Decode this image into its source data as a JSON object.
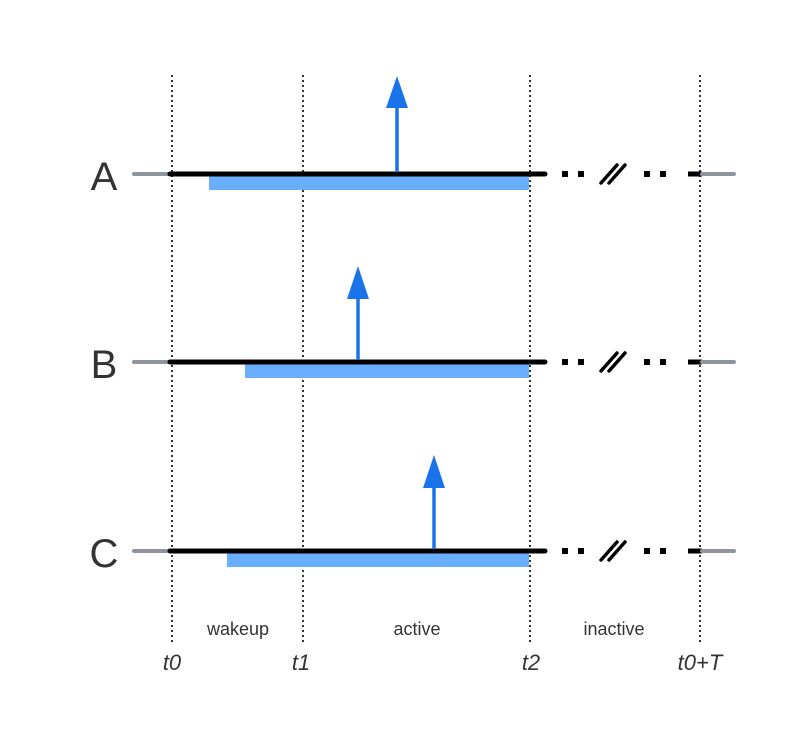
{
  "colors": {
    "timeline": "#000000",
    "stub": "#8e959e",
    "active_bar": "#6aafff",
    "arrow": "#1a73e8",
    "guide": "#000000",
    "text": "#333333"
  },
  "rows": [
    {
      "label": "A"
    },
    {
      "label": "B"
    },
    {
      "label": "C"
    }
  ],
  "phases": [
    {
      "label": "wakeup"
    },
    {
      "label": "active"
    },
    {
      "label": "inactive"
    }
  ],
  "time_markers": [
    {
      "label": "t0"
    },
    {
      "label": "t1"
    },
    {
      "label": "t2"
    },
    {
      "label": "t0+T"
    }
  ]
}
